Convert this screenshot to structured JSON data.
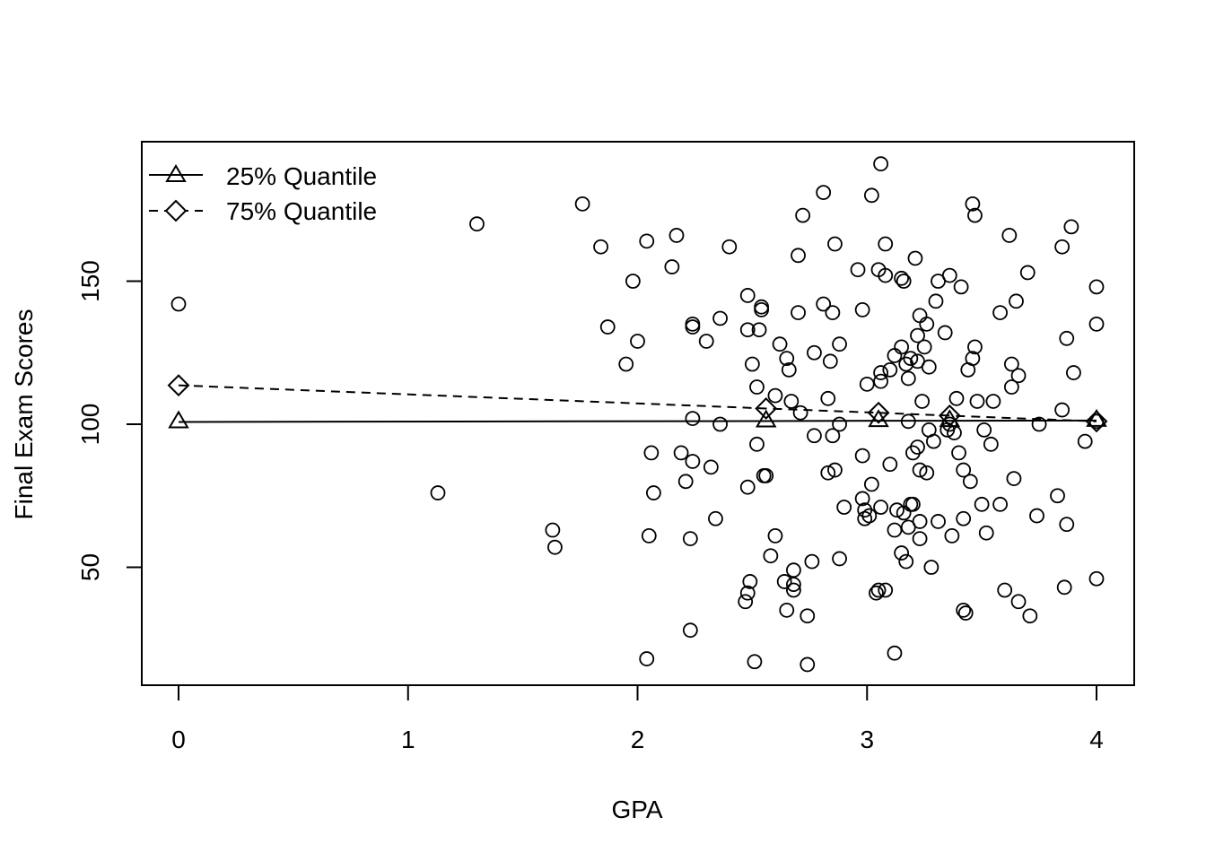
{
  "chart_data": {
    "type": "scatter",
    "title": "",
    "xlabel": "GPA",
    "ylabel": "Final Exam Scores",
    "xlim": [
      0,
      4
    ],
    "ylim": [
      15,
      195
    ],
    "xticks": [
      0,
      1,
      2,
      3,
      4
    ],
    "yticks": [
      50,
      100,
      150
    ],
    "grid": false,
    "legend": {
      "placement": "top-left",
      "entries": [
        {
          "label": "25% Quantile",
          "line": "solid",
          "marker": "triangle"
        },
        {
          "label": "75% Quantile",
          "line": "dashed",
          "marker": "diamond"
        }
      ]
    },
    "points": [
      [
        0.0,
        142
      ],
      [
        1.13,
        76
      ],
      [
        1.3,
        170
      ],
      [
        1.63,
        63
      ],
      [
        1.64,
        57
      ],
      [
        1.76,
        177
      ],
      [
        1.84,
        162
      ],
      [
        1.87,
        134
      ],
      [
        1.95,
        121
      ],
      [
        1.98,
        150
      ],
      [
        2.0,
        129
      ],
      [
        2.04,
        164
      ],
      [
        2.05,
        61
      ],
      [
        2.06,
        90
      ],
      [
        2.07,
        76
      ],
      [
        2.04,
        18
      ],
      [
        2.15,
        155
      ],
      [
        2.17,
        166
      ],
      [
        2.19,
        90
      ],
      [
        2.21,
        80
      ],
      [
        2.23,
        60
      ],
      [
        2.23,
        28
      ],
      [
        2.24,
        87
      ],
      [
        2.24,
        102
      ],
      [
        2.24,
        134
      ],
      [
        2.24,
        135
      ],
      [
        2.3,
        129
      ],
      [
        2.32,
        85
      ],
      [
        2.34,
        67
      ],
      [
        2.36,
        137
      ],
      [
        2.36,
        100
      ],
      [
        2.4,
        162
      ],
      [
        2.48,
        145
      ],
      [
        2.48,
        133
      ],
      [
        2.48,
        78
      ],
      [
        2.48,
        41
      ],
      [
        2.47,
        38
      ],
      [
        2.49,
        45
      ],
      [
        2.5,
        121
      ],
      [
        2.52,
        113
      ],
      [
        2.52,
        93
      ],
      [
        2.51,
        17
      ],
      [
        2.53,
        133
      ],
      [
        2.54,
        141
      ],
      [
        2.54,
        140
      ],
      [
        2.55,
        82
      ],
      [
        2.56,
        82
      ],
      [
        2.58,
        54
      ],
      [
        2.6,
        110
      ],
      [
        2.6,
        61
      ],
      [
        2.62,
        128
      ],
      [
        2.64,
        45
      ],
      [
        2.65,
        35
      ],
      [
        2.65,
        123
      ],
      [
        2.66,
        119
      ],
      [
        2.67,
        108
      ],
      [
        2.68,
        49
      ],
      [
        2.68,
        44
      ],
      [
        2.68,
        42
      ],
      [
        2.7,
        159
      ],
      [
        2.7,
        139
      ],
      [
        2.71,
        104
      ],
      [
        2.72,
        173
      ],
      [
        2.74,
        33
      ],
      [
        2.74,
        16
      ],
      [
        2.76,
        52
      ],
      [
        2.77,
        125
      ],
      [
        2.77,
        96
      ],
      [
        2.81,
        181
      ],
      [
        2.81,
        142
      ],
      [
        2.83,
        109
      ],
      [
        2.83,
        83
      ],
      [
        2.84,
        122
      ],
      [
        2.85,
        139
      ],
      [
        2.85,
        96
      ],
      [
        2.86,
        163
      ],
      [
        2.86,
        84
      ],
      [
        2.88,
        128
      ],
      [
        2.88,
        100
      ],
      [
        2.88,
        53
      ],
      [
        2.9,
        71
      ],
      [
        2.96,
        154
      ],
      [
        2.98,
        140
      ],
      [
        2.98,
        89
      ],
      [
        2.98,
        74
      ],
      [
        2.99,
        70
      ],
      [
        2.99,
        67
      ],
      [
        3.0,
        114
      ],
      [
        3.02,
        180
      ],
      [
        3.02,
        79
      ],
      [
        3.01,
        68
      ],
      [
        3.04,
        41
      ],
      [
        3.05,
        42
      ],
      [
        3.06,
        191
      ],
      [
        3.05,
        154
      ],
      [
        3.06,
        118
      ],
      [
        3.06,
        115
      ],
      [
        3.06,
        71
      ],
      [
        3.08,
        163
      ],
      [
        3.08,
        152
      ],
      [
        3.08,
        42
      ],
      [
        3.1,
        119
      ],
      [
        3.1,
        86
      ],
      [
        3.12,
        124
      ],
      [
        3.12,
        63
      ],
      [
        3.13,
        70
      ],
      [
        3.12,
        20
      ],
      [
        3.15,
        151
      ],
      [
        3.16,
        150
      ],
      [
        3.15,
        127
      ],
      [
        3.16,
        69
      ],
      [
        3.15,
        55
      ],
      [
        3.17,
        121
      ],
      [
        3.17,
        52
      ],
      [
        3.18,
        116
      ],
      [
        3.18,
        101
      ],
      [
        3.18,
        64
      ],
      [
        3.19,
        123
      ],
      [
        3.19,
        72
      ],
      [
        3.2,
        90
      ],
      [
        3.2,
        72
      ],
      [
        3.21,
        158
      ],
      [
        3.22,
        131
      ],
      [
        3.22,
        122
      ],
      [
        3.22,
        92
      ],
      [
        3.23,
        138
      ],
      [
        3.23,
        84
      ],
      [
        3.23,
        66
      ],
      [
        3.23,
        60
      ],
      [
        3.24,
        108
      ],
      [
        3.25,
        127
      ],
      [
        3.26,
        135
      ],
      [
        3.26,
        83
      ],
      [
        3.27,
        98
      ],
      [
        3.27,
        120
      ],
      [
        3.28,
        50
      ],
      [
        3.29,
        94
      ],
      [
        3.3,
        143
      ],
      [
        3.31,
        66
      ],
      [
        3.31,
        150
      ],
      [
        3.34,
        132
      ],
      [
        3.35,
        98
      ],
      [
        3.36,
        152
      ],
      [
        3.36,
        100
      ],
      [
        3.37,
        61
      ],
      [
        3.38,
        97
      ],
      [
        3.39,
        109
      ],
      [
        3.4,
        90
      ],
      [
        3.41,
        148
      ],
      [
        3.42,
        84
      ],
      [
        3.42,
        67
      ],
      [
        3.42,
        35
      ],
      [
        3.43,
        34
      ],
      [
        3.44,
        119
      ],
      [
        3.45,
        80
      ],
      [
        3.46,
        177
      ],
      [
        3.46,
        123
      ],
      [
        3.47,
        173
      ],
      [
        3.47,
        127
      ],
      [
        3.48,
        108
      ],
      [
        3.5,
        72
      ],
      [
        3.51,
        98
      ],
      [
        3.52,
        62
      ],
      [
        3.54,
        93
      ],
      [
        3.55,
        108
      ],
      [
        3.58,
        139
      ],
      [
        3.58,
        72
      ],
      [
        3.6,
        42
      ],
      [
        3.62,
        166
      ],
      [
        3.63,
        121
      ],
      [
        3.63,
        113
      ],
      [
        3.64,
        81
      ],
      [
        3.65,
        143
      ],
      [
        3.66,
        117
      ],
      [
        3.66,
        38
      ],
      [
        3.7,
        153
      ],
      [
        3.71,
        33
      ],
      [
        3.74,
        68
      ],
      [
        3.75,
        100
      ],
      [
        3.83,
        75
      ],
      [
        3.85,
        162
      ],
      [
        3.85,
        105
      ],
      [
        3.86,
        43
      ],
      [
        3.87,
        130
      ],
      [
        3.87,
        65
      ],
      [
        3.89,
        169
      ],
      [
        3.9,
        118
      ],
      [
        3.95,
        94
      ],
      [
        4.0,
        148
      ],
      [
        4.0,
        135
      ],
      [
        4.0,
        101
      ],
      [
        4.0,
        46
      ]
    ],
    "series": [
      {
        "name": "25% Quantile",
        "x": [
          0,
          2.56,
          3.05,
          3.36,
          4.0
        ],
        "y": [
          100.8,
          101.1,
          101.2,
          101.2,
          101.3
        ]
      },
      {
        "name": "75% Quantile",
        "x": [
          0,
          2.56,
          3.05,
          3.36,
          4.0
        ],
        "y": [
          113.6,
          105.5,
          104.0,
          103.0,
          101.0
        ]
      }
    ]
  }
}
